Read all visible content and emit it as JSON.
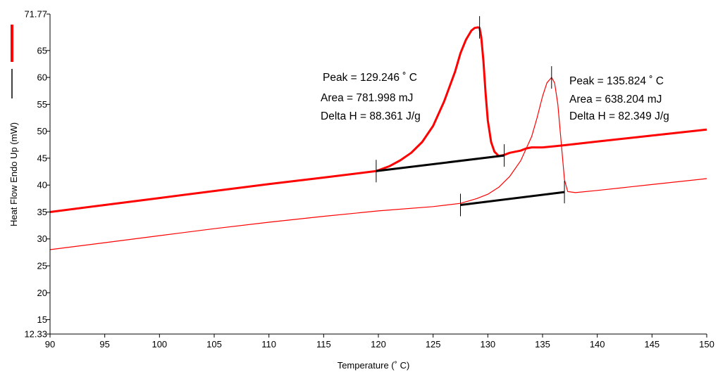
{
  "chart_data": {
    "type": "line",
    "xlabel": "Temperature (˚ C)",
    "ylabel": "Heat Flow Endo Up (mW)",
    "xlim": [
      90,
      150
    ],
    "ylim": [
      12.33,
      71.77
    ],
    "x_ticks": [
      "90",
      "95",
      "100",
      "105",
      "110",
      "115",
      "120",
      "125",
      "130",
      "135",
      "140",
      "145",
      "150"
    ],
    "y_ticks": [
      "12.33",
      "15",
      "20",
      "25",
      "30",
      "35",
      "40",
      "45",
      "50",
      "55",
      "60",
      "65",
      "71.77"
    ],
    "grid": false,
    "legend": "left",
    "series": [
      {
        "color": "#ff0000",
        "style": "thick",
        "x": [
          90,
          95,
          100,
          105,
          110,
          115,
          119.8,
          121,
          122,
          123,
          124,
          125,
          126,
          127,
          127.5,
          128,
          128.5,
          128.8,
          129.1,
          129.246,
          129.4,
          129.6,
          129.8,
          130,
          130.3,
          130.6,
          131,
          131.5,
          132,
          133,
          133.5,
          134,
          135,
          136,
          137,
          140,
          145,
          150
        ],
        "y": [
          35.0,
          36.3,
          37.6,
          38.9,
          40.2,
          41.4,
          42.6,
          43.5,
          44.6,
          46.0,
          48.0,
          51.0,
          55.5,
          61.0,
          64.5,
          67.0,
          68.7,
          69.2,
          69.3,
          69.2,
          67.5,
          63.0,
          57.0,
          52.0,
          48.0,
          46.2,
          45.4,
          45.6,
          46.0,
          46.4,
          46.8,
          47.0,
          47.0,
          47.2,
          47.4,
          48.1,
          49.2,
          50.3
        ]
      },
      {
        "color": "#ff0000",
        "style": "thin",
        "x": [
          90,
          95,
          100,
          105,
          110,
          115,
          120,
          125,
          127.5,
          129,
          130,
          131,
          132,
          133,
          134,
          134.5,
          135,
          135.4,
          135.824,
          136.1,
          136.4,
          136.7,
          137,
          137.3,
          138,
          140,
          145,
          150
        ],
        "y": [
          28.0,
          29.3,
          30.6,
          31.9,
          33.1,
          34.2,
          35.2,
          36.0,
          36.6,
          37.5,
          38.3,
          39.6,
          41.6,
          44.5,
          49.0,
          52.5,
          56.5,
          59.0,
          60.0,
          59.0,
          55.0,
          48.0,
          41.0,
          38.8,
          38.6,
          39.0,
          40.1,
          41.2
        ]
      },
      {
        "color": "#000000",
        "style": "baseline",
        "x": [
          119.8,
          131.5
        ],
        "y": [
          42.6,
          45.5
        ]
      },
      {
        "color": "#000000",
        "style": "baseline",
        "x": [
          127.5,
          137
        ],
        "y": [
          36.3,
          38.7
        ]
      }
    ],
    "marker_ticks": [
      {
        "x": 119.8,
        "y": 42.6
      },
      {
        "x": 131.5,
        "y": 45.5
      },
      {
        "x": 129.246,
        "y": 69.3
      },
      {
        "x": 127.5,
        "y": 36.3
      },
      {
        "x": 137,
        "y": 38.7
      },
      {
        "x": 135.824,
        "y": 60.0
      }
    ],
    "annotations": [
      {
        "lines": [
          "Peak = 129.246 ˚ C",
          "Area = 781.998 mJ",
          "Delta H = 88.361 J/g"
        ]
      },
      {
        "lines": [
          "Peak = 135.824 ˚ C",
          "Area = 638.204 mJ",
          "Delta H = 82.349 J/g"
        ]
      }
    ],
    "legend_items": [
      {
        "color": "#ff0000",
        "style": "thick"
      },
      {
        "color": "#000000",
        "style": "thin"
      }
    ]
  }
}
